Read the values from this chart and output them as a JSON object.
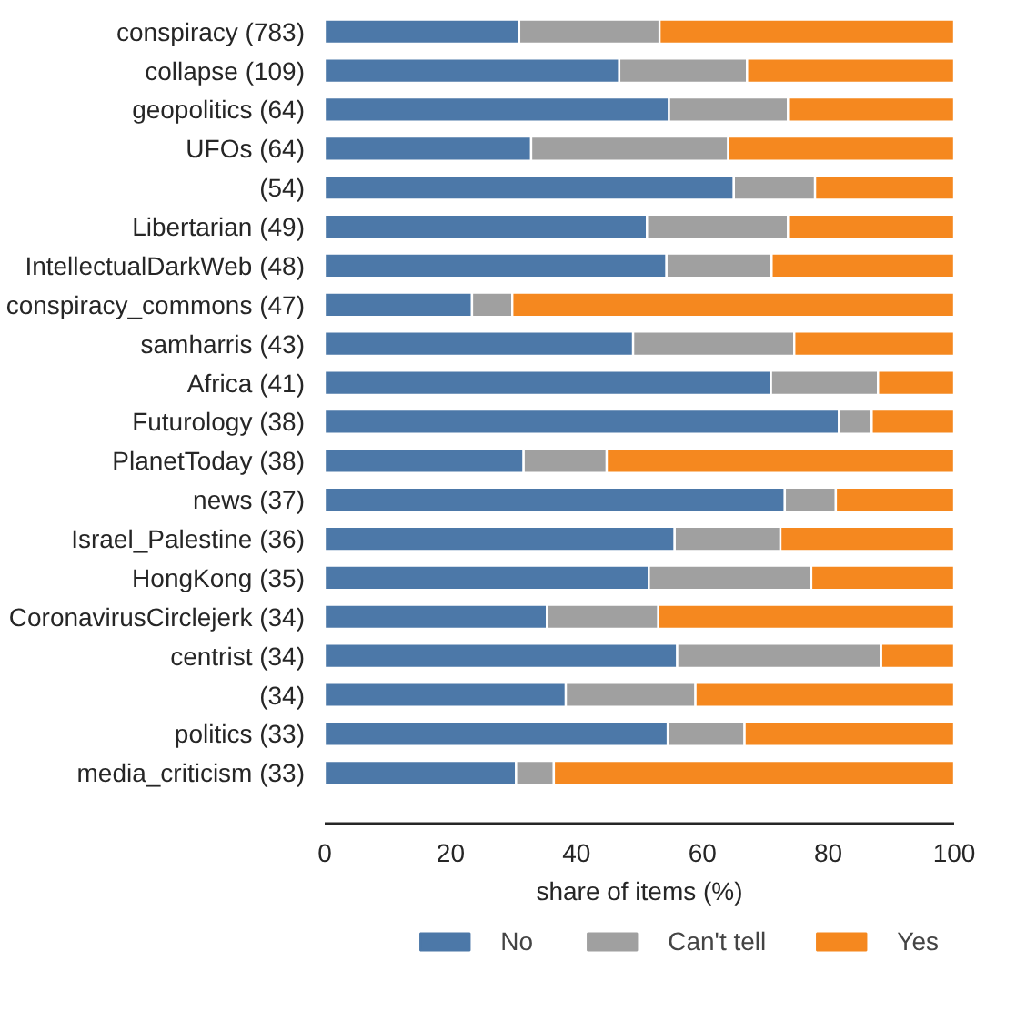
{
  "chart_data": {
    "type": "bar",
    "orientation": "horizontal",
    "stacked": true,
    "categories": [
      "conspiracy (783)",
      "collapse (109)",
      "geopolitics (64)",
      "UFOs (64)",
      "(54)",
      "Libertarian (49)",
      "IntellectualDarkWeb (48)",
      "conspiracy_commons (47)",
      "samharris (43)",
      "Africa (41)",
      "Futurology (38)",
      "PlanetToday (38)",
      "news (37)",
      "Israel_Palestine (36)",
      "HongKong (35)",
      "CoronavirusCirclejerk (34)",
      "centrist (34)",
      "(34)",
      "politics (33)",
      "media_criticism (33)"
    ],
    "series": [
      {
        "name": "No",
        "color": "#4c78a8",
        "values": [
          30.9,
          46.8,
          54.7,
          32.8,
          65.0,
          51.2,
          54.3,
          23.4,
          49.0,
          70.9,
          81.7,
          31.6,
          73.1,
          55.6,
          51.5,
          35.3,
          56.0,
          38.3,
          54.5,
          30.4
        ]
      },
      {
        "name": "Can't tell",
        "color": "#a0a0a0",
        "values": [
          22.3,
          20.3,
          18.9,
          31.3,
          12.9,
          22.4,
          16.7,
          6.4,
          25.6,
          17.0,
          5.2,
          13.2,
          8.1,
          16.8,
          25.8,
          17.7,
          32.4,
          20.6,
          12.2,
          6.0
        ]
      },
      {
        "name": "Yes",
        "color": "#f5881f",
        "values": [
          46.8,
          32.9,
          26.4,
          35.9,
          22.1,
          26.4,
          29.0,
          70.2,
          25.4,
          12.1,
          13.1,
          55.2,
          18.8,
          27.6,
          22.7,
          47.0,
          11.6,
          41.1,
          33.3,
          63.6
        ]
      }
    ],
    "xlabel": "share of items (%)",
    "xlim": [
      0,
      100
    ],
    "xticks": [
      0,
      20,
      40,
      60,
      80,
      100
    ],
    "grid": false,
    "legend": "bottom"
  }
}
